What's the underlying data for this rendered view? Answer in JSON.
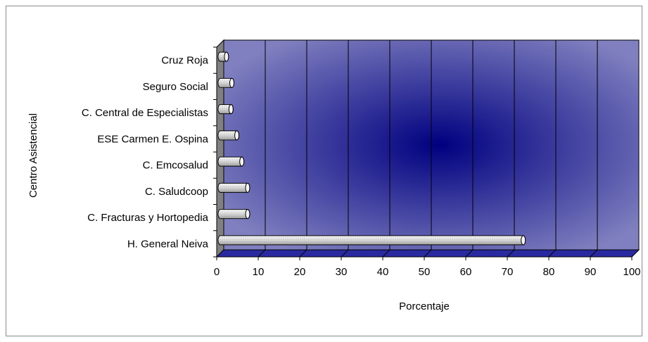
{
  "chart_data": {
    "type": "bar",
    "orientation": "horizontal",
    "title": "",
    "xlabel": "Porcentaje",
    "ylabel": "Centro Asistencial",
    "xlim": [
      0,
      100
    ],
    "x_ticks": [
      0,
      10,
      20,
      30,
      40,
      50,
      60,
      70,
      80,
      90,
      100
    ],
    "categories": [
      "Cruz Roja",
      "Seguro Social",
      "C. Central de Especialistas",
      "ESE Carmen E. Ospina",
      "C. Emcosalud",
      "C. Saludcoop",
      "C. Fracturas y Hortopedia",
      "H. General Neiva"
    ],
    "values": [
      1.5,
      2.8,
      2.6,
      4.0,
      5.2,
      6.6,
      6.6,
      73.0
    ],
    "grid": true,
    "legend": "none",
    "colors": {
      "plot_background_edge": "#8080c0",
      "plot_background_center": "#000080",
      "bar_fill": "#e8e8e8",
      "wall": "#808080"
    }
  }
}
